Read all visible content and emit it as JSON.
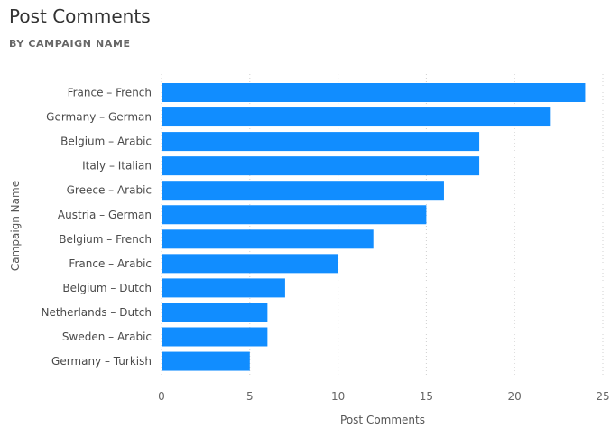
{
  "chart_data": {
    "type": "bar",
    "orientation": "horizontal",
    "title": "Post Comments",
    "subtitle": "BY CAMPAIGN NAME",
    "xlabel": "Post Comments",
    "ylabel": "Campaign Name",
    "categories": [
      "France – French",
      "Germany – German",
      "Belgium – Arabic",
      "Italy – Italian",
      "Greece – Arabic",
      "Austria – German",
      "Belgium – French",
      "France – Arabic",
      "Belgium – Dutch",
      "Netherlands – Dutch",
      "Sweden – Arabic",
      "Germany – Turkish"
    ],
    "values": [
      24,
      22,
      18,
      18,
      16,
      15,
      12,
      10,
      7,
      6,
      6,
      5
    ],
    "xlim": [
      0,
      25
    ],
    "xticks": [
      0,
      5,
      10,
      15,
      20,
      25
    ],
    "grid": true,
    "legend": "none",
    "bar_color": "#118DFF",
    "grid_color": "#d0d0d0"
  }
}
